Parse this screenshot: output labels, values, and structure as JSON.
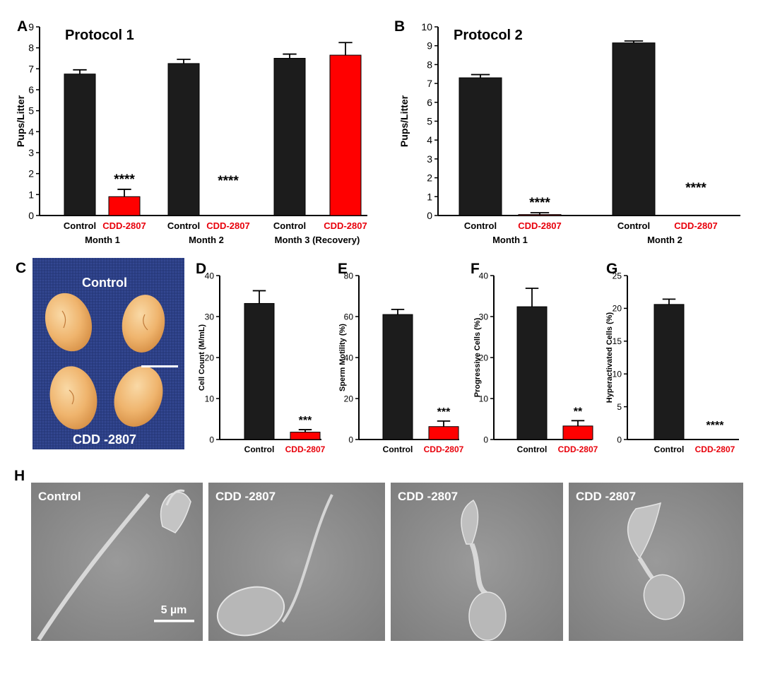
{
  "colors": {
    "control": "#1c1c1c",
    "treated": "#ff0000",
    "label_red": "#e8000b",
    "testis": "#f0b774",
    "cloth": "#2c3f85",
    "sem_bg": "#8e8e8e"
  },
  "panels": {
    "A": {
      "letter": "A",
      "title": "Protocol 1"
    },
    "B": {
      "letter": "B",
      "title": "Protocol 2"
    },
    "C": {
      "letter": "C",
      "top_label": "Control",
      "bottom_label": "CDD -2807"
    },
    "D": {
      "letter": "D"
    },
    "E": {
      "letter": "E"
    },
    "F": {
      "letter": "F"
    },
    "G": {
      "letter": "G"
    },
    "H": {
      "letter": "H",
      "images": [
        {
          "label": "Control",
          "icon": "sperm-cell-icon"
        },
        {
          "label": "CDD -2807",
          "icon": "sperm-cell-icon"
        },
        {
          "label": "CDD -2807",
          "icon": "sperm-cell-icon"
        },
        {
          "label": "CDD -2807",
          "icon": "sperm-cell-icon"
        }
      ],
      "scale_bar_label": "5 µm"
    }
  },
  "chart_data": [
    {
      "panel": "A",
      "type": "bar",
      "title": "Protocol 1",
      "ylabel": "Pups/Litter",
      "ylim": [
        0,
        9
      ],
      "yticks": [
        0,
        1,
        2,
        3,
        4,
        5,
        6,
        7,
        8,
        9
      ],
      "categories": [
        "Control",
        "CDD-2807",
        "Control",
        "CDD-2807",
        "Control",
        "CDD-2807"
      ],
      "groups": [
        "Month 1",
        "Month 2",
        "Month 3 (Recovery)"
      ],
      "values": [
        6.75,
        0.9,
        7.25,
        0,
        7.5,
        7.65
      ],
      "errors": [
        0.2,
        0.35,
        0.2,
        0,
        0.2,
        0.6
      ],
      "significance": [
        "",
        "****",
        "",
        "****",
        "",
        ""
      ]
    },
    {
      "panel": "B",
      "type": "bar",
      "title": "Protocol 2",
      "ylabel": "Pups/Litter",
      "ylim": [
        0,
        10
      ],
      "yticks": [
        0,
        1,
        2,
        3,
        4,
        5,
        6,
        7,
        8,
        9,
        10
      ],
      "categories": [
        "Control",
        "CDD-2807",
        "Control",
        "CDD-2807"
      ],
      "groups": [
        "Month 1",
        "Month 2"
      ],
      "values": [
        7.3,
        0.05,
        9.15,
        0
      ],
      "errors": [
        0.17,
        0.1,
        0.1,
        0
      ],
      "significance": [
        "",
        "****",
        "",
        "****"
      ]
    },
    {
      "panel": "D",
      "type": "bar",
      "ylabel": "Cell Count (M/mL)",
      "ylim": [
        0,
        40
      ],
      "yticks": [
        0,
        10,
        20,
        30,
        40
      ],
      "categories": [
        "Control",
        "CDD-2807"
      ],
      "values": [
        33.2,
        1.8
      ],
      "errors": [
        3.1,
        0.6
      ],
      "significance": [
        "",
        "***"
      ]
    },
    {
      "panel": "E",
      "type": "bar",
      "ylabel": "Sperm Motility (%)",
      "ylim": [
        0,
        80
      ],
      "yticks": [
        0,
        20,
        40,
        60,
        80
      ],
      "categories": [
        "Control",
        "CDD-2807"
      ],
      "values": [
        61,
        6.3
      ],
      "errors": [
        2.5,
        2.7
      ],
      "significance": [
        "",
        "***"
      ]
    },
    {
      "panel": "F",
      "type": "bar",
      "ylabel": "Progressive Cells (%)",
      "ylim": [
        0,
        40
      ],
      "yticks": [
        0,
        10,
        20,
        30,
        40
      ],
      "categories": [
        "Control",
        "CDD-2807"
      ],
      "values": [
        32.4,
        3.3
      ],
      "errors": [
        4.5,
        1.3
      ],
      "significance": [
        "",
        "**"
      ]
    },
    {
      "panel": "G",
      "type": "bar",
      "ylabel": "Hyperactivated Cells (%)",
      "ylim": [
        0,
        25
      ],
      "yticks": [
        0,
        5,
        10,
        15,
        20,
        25
      ],
      "categories": [
        "Control",
        "CDD-2807"
      ],
      "values": [
        20.6,
        0
      ],
      "errors": [
        0.8,
        0
      ],
      "significance": [
        "",
        "****"
      ]
    }
  ]
}
